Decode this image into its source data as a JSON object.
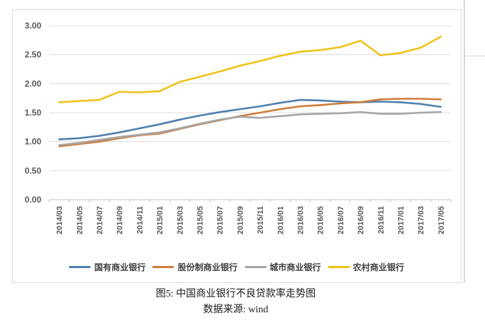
{
  "chart_data": {
    "type": "line",
    "x": [
      "2014/03",
      "2014/05",
      "2014/07",
      "2014/09",
      "2014/11",
      "2015/01",
      "2015/03",
      "2015/05",
      "2015/07",
      "2015/09",
      "2015/11",
      "2016/01",
      "2016/03",
      "2016/05",
      "2016/07",
      "2016/09",
      "2016/11",
      "2017/01",
      "2017/03",
      "2017/05"
    ],
    "series": [
      {
        "name": "国有商业银行",
        "color": "#4e81ae",
        "values": [
          1.04,
          1.06,
          1.1,
          1.16,
          1.23,
          1.3,
          1.38,
          1.45,
          1.51,
          1.56,
          1.61,
          1.67,
          1.72,
          1.71,
          1.69,
          1.68,
          1.69,
          1.68,
          1.65,
          1.6
        ]
      },
      {
        "name": "股份制商业银行",
        "color": "#cf7d3b",
        "values": [
          0.92,
          0.96,
          1.0,
          1.06,
          1.11,
          1.14,
          1.22,
          1.3,
          1.37,
          1.44,
          1.5,
          1.56,
          1.61,
          1.63,
          1.66,
          1.68,
          1.73,
          1.74,
          1.74,
          1.73
        ]
      },
      {
        "name": "城市商业银行",
        "color": "#a6a6a6",
        "values": [
          0.94,
          0.98,
          1.03,
          1.08,
          1.12,
          1.16,
          1.23,
          1.31,
          1.38,
          1.43,
          1.41,
          1.44,
          1.47,
          1.48,
          1.49,
          1.51,
          1.48,
          1.48,
          1.5,
          1.51
        ]
      },
      {
        "name": "农村商业银行",
        "color": "#efc319",
        "values": [
          1.68,
          1.7,
          1.72,
          1.86,
          1.85,
          1.87,
          2.03,
          2.12,
          2.21,
          2.31,
          2.39,
          2.48,
          2.55,
          2.58,
          2.63,
          2.74,
          2.49,
          2.53,
          2.62,
          2.81
        ]
      }
    ],
    "title": "",
    "xlabel": "",
    "ylabel": "",
    "ylim": [
      0,
      3
    ],
    "ytick_step": 0.5,
    "ytick_decimals": 2,
    "grid": true,
    "legend_position": "bottom"
  },
  "caption": {
    "title": "图5: 中国商业银行不良贷款率走势图",
    "source": "数据来源: wind"
  },
  "style_colors": {
    "gridline": "#dcdcdc",
    "axis_line": "#c6c6c6",
    "axis_text": "#595959"
  }
}
